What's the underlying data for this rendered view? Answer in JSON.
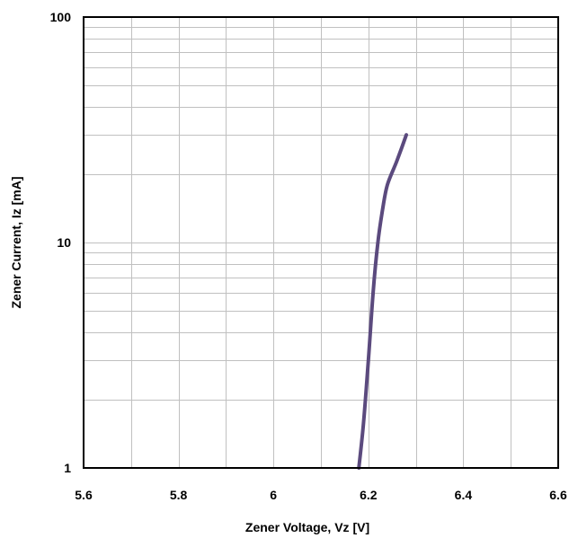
{
  "chart_data": {
    "type": "line",
    "title": "",
    "xlabel": "Zener Voltage, Vz [V]",
    "ylabel": "Zener Current, Iz  [mA]",
    "x_scale": "linear",
    "y_scale": "log",
    "xlim": [
      5.6,
      6.6
    ],
    "ylim": [
      1,
      100
    ],
    "x_ticks": [
      5.6,
      5.8,
      6.0,
      6.2,
      6.4,
      6.6
    ],
    "x_tick_labels": [
      "5.6",
      "5.8",
      "6",
      "6.2",
      "6.4",
      "6.6"
    ],
    "y_ticks": [
      1,
      10,
      100
    ],
    "y_tick_labels": [
      "1",
      "10",
      "100"
    ],
    "grid": true,
    "legend": "none",
    "series": [
      {
        "color": "#5b4a7e",
        "points": [
          {
            "x": 6.18,
            "y": 1
          },
          {
            "x": 6.19,
            "y": 1.6
          },
          {
            "x": 6.2,
            "y": 3
          },
          {
            "x": 6.21,
            "y": 6
          },
          {
            "x": 6.22,
            "y": 10
          },
          {
            "x": 6.23,
            "y": 14
          },
          {
            "x": 6.24,
            "y": 18
          },
          {
            "x": 6.26,
            "y": 23
          },
          {
            "x": 6.28,
            "y": 30
          }
        ]
      }
    ]
  }
}
